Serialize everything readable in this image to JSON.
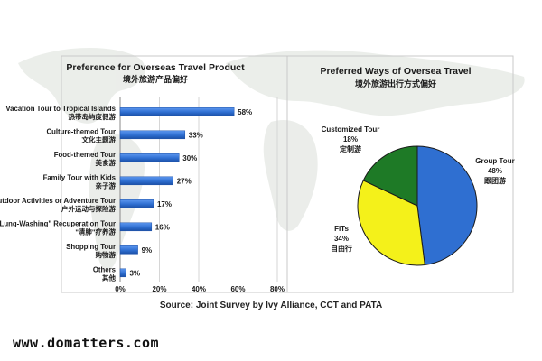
{
  "chart_data": [
    {
      "type": "bar",
      "orientation": "horizontal",
      "title": "Preference for Overseas Travel Product",
      "subtitle": "境外旅游产品偏好",
      "categories": [
        {
          "label": "Vacation Tour to Tropical Islands",
          "label_cn": "热带岛屿度假游"
        },
        {
          "label": "Culture-themed Tour",
          "label_cn": "文化主题游"
        },
        {
          "label": "Food-themed Tour",
          "label_cn": "美食游"
        },
        {
          "label": "Family Tour with Kids",
          "label_cn": "亲子游"
        },
        {
          "label": "Outdoor Activities or Adventure Tour",
          "label_cn": "户外运动与探险游"
        },
        {
          "label": "\"Lung-Washing\" Recuperation Tour",
          "label_cn": "\"清肺\"疗养游"
        },
        {
          "label": "Shopping Tour",
          "label_cn": "购物游"
        },
        {
          "label": "Others",
          "label_cn": "其他"
        }
      ],
      "values": [
        58,
        33,
        30,
        27,
        17,
        16,
        9,
        3
      ],
      "value_labels": [
        "58%",
        "33%",
        "30%",
        "27%",
        "17%",
        "16%",
        "9%",
        "3%"
      ],
      "xlim": [
        0,
        80
      ],
      "xticks": [
        0,
        20,
        40,
        60,
        80
      ],
      "xtick_labels": [
        "0%",
        "20%",
        "40%",
        "60%",
        "80%"
      ],
      "grid": true,
      "bar_color": "#2f6fd1"
    },
    {
      "type": "pie",
      "title": "Preferred Ways of Oversea Travel",
      "subtitle": "境外旅游出行方式偏好",
      "slices": [
        {
          "label": "Group Tour",
          "label_cn": "跟团游",
          "value": 48,
          "value_label": "48%",
          "color": "#2f6fd1"
        },
        {
          "label": "FITs",
          "label_cn": "自由行",
          "value": 34,
          "value_label": "34%",
          "color": "#f4f11a"
        },
        {
          "label": "Customized Tour",
          "label_cn": "定制游",
          "value": 18,
          "value_label": "18%",
          "color": "#1e7a26"
        }
      ]
    }
  ],
  "source": "Source: Joint Survey by Ivy Alliance, CCT and PATA",
  "website": "www.domatters.com"
}
